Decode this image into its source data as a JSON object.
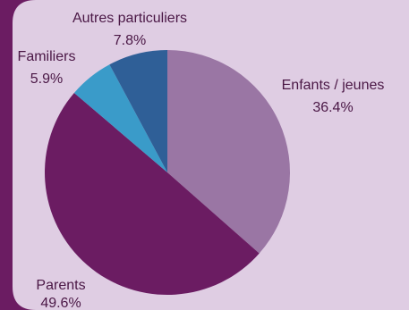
{
  "chart_data": {
    "type": "pie",
    "title": "",
    "start_angle_deg": 0,
    "direction": "clockwise",
    "slices": [
      {
        "label": "Enfants / jeunes",
        "value": 36.4,
        "display": "36.4%",
        "color": "#9a76a4"
      },
      {
        "label": "Parents",
        "value": 49.6,
        "display": "49.6%",
        "color": "#6b1c62"
      },
      {
        "label": "Familiers",
        "value": 5.9,
        "display": "5.9%",
        "color": "#3a9bc9"
      },
      {
        "label": "Autres particuliers",
        "value": 7.8,
        "display": "7.8%",
        "color": "#2f5f97"
      }
    ]
  },
  "colors": {
    "outer_background": "#6b1c62",
    "panel_background": "#dfcde3",
    "label_text": "#4a1745"
  }
}
